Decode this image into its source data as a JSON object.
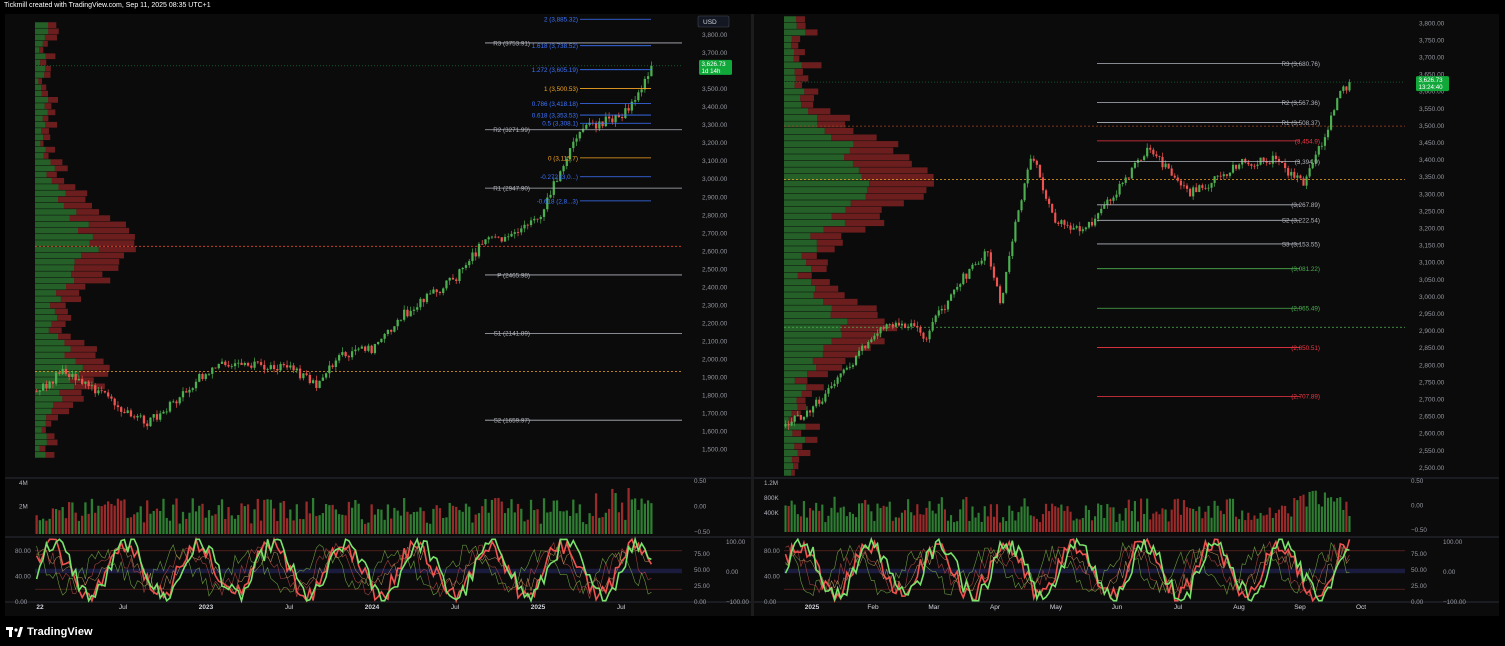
{
  "header": {
    "attribution": "Tickmill created with TradingView.com, Sep 11, 2025 08:35 UTC+1"
  },
  "footer": {
    "brand": "TradingView"
  },
  "colors": {
    "up": "#26a69a",
    "up_candle": "#4caf50",
    "down": "#ef5350",
    "fib": "#3d74ff",
    "pivot": "#b2b5be",
    "support": "#4caf50",
    "resistance": "#f23645",
    "badge": "#11a83a",
    "poc": "#f5a623"
  },
  "chart_data": [
    {
      "type": "candlestick",
      "title": "",
      "currency_label": "USD",
      "x_tick_labels": [
        "22",
        "Jul",
        "2023",
        "Jul",
        "2024",
        "Jul",
        "2025",
        "Jul"
      ],
      "y_tick_labels": [
        "1,500.00",
        "1,600.00",
        "1,700.00",
        "1,800.00",
        "1,900.00",
        "2,000.00",
        "2,100.00",
        "2,200.00",
        "2,300.00",
        "2,400.00",
        "2,500.00",
        "2,600.00",
        "2,700.00",
        "2,800.00",
        "2,900.00",
        "3,000.00",
        "3,100.00",
        "3,200.00",
        "3,300.00",
        "3,400.00",
        "3,500.00",
        "3,600.00",
        "3,700.00",
        "3,800.00"
      ],
      "ylim": [
        1450,
        3870
      ],
      "last_price": {
        "value": 3626.73,
        "label": "3,626.73",
        "countdown": "1d 14h"
      },
      "close_path": [
        [
          "2022-01",
          1820
        ],
        [
          "2022-03",
          1930
        ],
        [
          "2022-05",
          1840
        ],
        [
          "2022-07",
          1730
        ],
        [
          "2022-09",
          1650
        ],
        [
          "2022-11",
          1760
        ],
        [
          "2023-01",
          1920
        ],
        [
          "2023-03",
          1980
        ],
        [
          "2023-05",
          1960
        ],
        [
          "2023-07",
          1950
        ],
        [
          "2023-09",
          1860
        ],
        [
          "2023-11",
          2030
        ],
        [
          "2024-01",
          2050
        ],
        [
          "2024-03",
          2230
        ],
        [
          "2024-05",
          2340
        ],
        [
          "2024-07",
          2450
        ],
        [
          "2024-09",
          2650
        ],
        [
          "2024-11",
          2680
        ],
        [
          "2025-01",
          2800
        ],
        [
          "2025-03",
          3120
        ],
        [
          "2025-04",
          3300
        ],
        [
          "2025-05",
          3290
        ],
        [
          "2025-06",
          3330
        ],
        [
          "2025-07",
          3350
        ],
        [
          "2025-08",
          3450
        ],
        [
          "2025-09",
          3626.73
        ]
      ],
      "pivot_levels": [
        {
          "label": "R3 (3753.91)",
          "value": 3753.91
        },
        {
          "label": "R2 (3271.99)",
          "value": 3271.99
        },
        {
          "label": "R1 (2947.90)",
          "value": 2947.9
        },
        {
          "label": "P (2465.98)",
          "value": 2465.98
        },
        {
          "label": "S1 (2141.89)",
          "value": 2141.89
        },
        {
          "label": "S2 (1659.97)",
          "value": 1659.97
        }
      ],
      "fib_levels": [
        {
          "label": "2 (3,885.32)",
          "value": 3885.32
        },
        {
          "label": "1.618 (3,738.52)",
          "value": 3738.52
        },
        {
          "label": "1.272 (3,605.19)",
          "value": 3605.19
        },
        {
          "label": "1 (3,500.53)",
          "value": 3500.53
        },
        {
          "label": "0.786 (3,418.18)",
          "value": 3418.18
        },
        {
          "label": "0.618 (3,353.53)",
          "value": 3353.53
        },
        {
          "label": "0.5 (3,308.1)",
          "value": 3308.1
        },
        {
          "label": "0 (3,115.7)",
          "value": 3115.7
        },
        {
          "label": "-0.272 (3,0...)",
          "value": 3011
        },
        {
          "label": "-0.618 (2,8...3)",
          "value": 2877
        }
      ],
      "poc_level": 2625,
      "value_area_level": 1930,
      "volume_axis_labels": [
        "4M",
        "2M"
      ],
      "oscillator_a": {
        "ticks": [
          "0.50",
          "0.00",
          "−0.50"
        ]
      },
      "stoch_rsi": {
        "left_ticks": [
          "80.00",
          "40.00",
          "0.00"
        ],
        "right_ticks": [
          "75.00",
          "50.00",
          "25.00",
          "0.00"
        ]
      },
      "cci": {
        "ticks": [
          "100.00",
          "0.00",
          "−100.00"
        ]
      }
    },
    {
      "type": "candlestick",
      "title": "",
      "x_tick_labels": [
        "2025",
        "Feb",
        "Mar",
        "Apr",
        "May",
        "Jun",
        "Jul",
        "Aug",
        "Sep",
        "Oct"
      ],
      "y_tick_labels": [
        "2,500.00",
        "2,550.00",
        "2,600.00",
        "2,650.00",
        "2,700.00",
        "2,750.00",
        "2,800.00",
        "2,850.00",
        "2,900.00",
        "2,950.00",
        "3,000.00",
        "3,050.00",
        "3,100.00",
        "3,150.00",
        "3,200.00",
        "3,250.00",
        "3,300.00",
        "3,350.00",
        "3,400.00",
        "3,450.00",
        "3,500.00",
        "3,550.00",
        "3,600.00",
        "3,650.00",
        "3,700.00",
        "3,750.00",
        "3,800.00"
      ],
      "ylim": [
        2475,
        3820
      ],
      "last_price": {
        "value": 3626.73,
        "label": "3,626.73",
        "countdown": "13:24:40"
      },
      "close_path": [
        [
          "2025-01-02",
          2620
        ],
        [
          "2025-01-15",
          2680
        ],
        [
          "2025-01-30",
          2790
        ],
        [
          "2025-02-11",
          2900
        ],
        [
          "2025-02-25",
          2920
        ],
        [
          "2025-03-05",
          2880
        ],
        [
          "2025-03-20",
          3040
        ],
        [
          "2025-04-02",
          3130
        ],
        [
          "2025-04-08",
          2980
        ],
        [
          "2025-04-15",
          3230
        ],
        [
          "2025-04-22",
          3420
        ],
        [
          "2025-05-01",
          3230
        ],
        [
          "2025-05-15",
          3190
        ],
        [
          "2025-05-28",
          3300
        ],
        [
          "2025-06-13",
          3430
        ],
        [
          "2025-06-30",
          3300
        ],
        [
          "2025-07-10",
          3330
        ],
        [
          "2025-07-23",
          3390
        ],
        [
          "2025-08-08",
          3400
        ],
        [
          "2025-08-20",
          3330
        ],
        [
          "2025-08-29",
          3450
        ],
        [
          "2025-09-05",
          3580
        ],
        [
          "2025-09-10",
          3626.73
        ]
      ],
      "pivot_levels": [
        {
          "label": "R3 (3,680.76)",
          "value": 3680.76,
          "kind": "pivot"
        },
        {
          "label": "R2 (3,567.36)",
          "value": 3567.36,
          "kind": "pivot"
        },
        {
          "label": "R1 (3,508.37)",
          "value": 3508.37,
          "kind": "pivot"
        },
        {
          "label": "(3,454.9)",
          "value": 3454.9,
          "kind": "resistance"
        },
        {
          "label": "(3,394.9)",
          "value": 3394.9,
          "kind": "pivot"
        },
        {
          "label": "(3,267.89)",
          "value": 3267.89,
          "kind": "pivot"
        },
        {
          "label": "S2 (3,222.54)",
          "value": 3222.54,
          "kind": "pivot"
        },
        {
          "label": "S3 (3,153.55)",
          "value": 3153.55,
          "kind": "pivot"
        },
        {
          "label": "(3,081.22)",
          "value": 3081.22,
          "kind": "support"
        },
        {
          "label": "(2,965.49)",
          "value": 2965.49,
          "kind": "support"
        },
        {
          "label": "(2,850.51)",
          "value": 2850.51,
          "kind": "resistance"
        },
        {
          "label": "(2,707.89)",
          "value": 2707.89,
          "kind": "resistance"
        }
      ],
      "poc_level": 3342,
      "value_area_level": 2910,
      "range_top_level": 3498,
      "volume_axis_labels": [
        "1.2M",
        "800K",
        "400K"
      ],
      "oscillator_a": {
        "ticks": [
          "0.50",
          "0.00",
          "−0.50"
        ]
      },
      "stoch_rsi": {
        "left_ticks": [
          "80.00",
          "40.00",
          "0.00"
        ],
        "right_ticks": [
          "75.00",
          "50.00",
          "25.00",
          "0.00"
        ]
      },
      "cci": {
        "ticks": [
          "100.00",
          "0.00",
          "−100.00"
        ]
      }
    }
  ]
}
